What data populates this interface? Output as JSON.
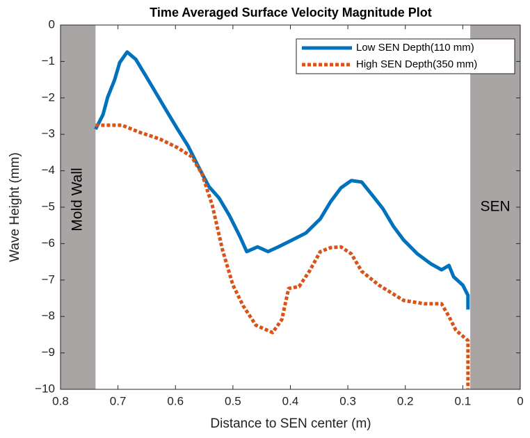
{
  "chart_data": {
    "type": "line",
    "title": "Time Averaged Surface Velocity Magnitude Plot",
    "x_label": "Distance to SEN center (m)",
    "y_label": "Wave Height (mm)",
    "xlim": [
      0.8,
      0
    ],
    "ylim": [
      -10,
      0
    ],
    "xticks": [
      0.8,
      0.7,
      0.6,
      0.5,
      0.4,
      0.3,
      0.2,
      0.1,
      0
    ],
    "yticks": [
      {
        "value": -10,
        "label": "−10"
      },
      {
        "value": -9,
        "label": "−9"
      },
      {
        "value": -8,
        "label": "−8"
      },
      {
        "value": -7,
        "label": "−7"
      },
      {
        "value": -6,
        "label": "−6"
      },
      {
        "value": -5,
        "label": "−5"
      },
      {
        "value": -4,
        "label": "−4"
      },
      {
        "value": -3,
        "label": "−3"
      },
      {
        "value": -2,
        "label": "−2"
      },
      {
        "value": -1,
        "label": "−1"
      },
      0
    ],
    "grid": false,
    "legend": "upper right",
    "regions": [
      {
        "label": "Mold Wall",
        "color": "#a9a5a4",
        "xlim": [
          0.8,
          0.739
        ]
      },
      {
        "label": "SEN",
        "color": "#a9a5a4",
        "xlim": [
          0.087,
          0
        ]
      }
    ],
    "series": [
      {
        "name": "Low SEN Depth(110 mm)",
        "color": "#0072bd",
        "style": "solid",
        "x": [
          0.739,
          0.726,
          0.718,
          0.706,
          0.697,
          0.684,
          0.669,
          0.651,
          0.633,
          0.615,
          0.597,
          0.578,
          0.56,
          0.542,
          0.524,
          0.506,
          0.488,
          0.476,
          0.457,
          0.439,
          0.421,
          0.397,
          0.373,
          0.348,
          0.33,
          0.312,
          0.294,
          0.276,
          0.258,
          0.239,
          0.221,
          0.203,
          0.179,
          0.155,
          0.137,
          0.124,
          0.116,
          0.1,
          0.091,
          0.091
        ],
        "values": [
          -2.86,
          -2.46,
          -1.98,
          -1.51,
          -1.03,
          -0.74,
          -0.94,
          -1.41,
          -1.89,
          -2.37,
          -2.84,
          -3.32,
          -3.89,
          -4.43,
          -4.75,
          -5.23,
          -5.8,
          -6.22,
          -6.09,
          -6.22,
          -6.09,
          -5.9,
          -5.71,
          -5.32,
          -4.85,
          -4.47,
          -4.27,
          -4.31,
          -4.66,
          -5.04,
          -5.52,
          -5.9,
          -6.28,
          -6.56,
          -6.72,
          -6.6,
          -6.91,
          -7.14,
          -7.42,
          -7.81
        ]
      },
      {
        "name": "High SEN Depth(350 mm)",
        "color": "#d95319",
        "style": "dotted",
        "x": [
          0.739,
          0.693,
          0.663,
          0.627,
          0.597,
          0.572,
          0.554,
          0.536,
          0.518,
          0.5,
          0.482,
          0.46,
          0.431,
          0.415,
          0.403,
          0.385,
          0.367,
          0.348,
          0.33,
          0.312,
          0.294,
          0.276,
          0.246,
          0.203,
          0.167,
          0.137,
          0.124,
          0.112,
          0.091,
          0.091
        ],
        "values": [
          -2.75,
          -2.75,
          -2.94,
          -3.13,
          -3.36,
          -3.61,
          -4.08,
          -4.94,
          -6.18,
          -7.14,
          -7.71,
          -8.24,
          -8.44,
          -8.09,
          -7.23,
          -7.18,
          -6.76,
          -6.22,
          -6.11,
          -6.09,
          -6.28,
          -6.76,
          -7.14,
          -7.56,
          -7.65,
          -7.65,
          -8.0,
          -8.38,
          -8.66,
          -10.0
        ]
      }
    ]
  }
}
